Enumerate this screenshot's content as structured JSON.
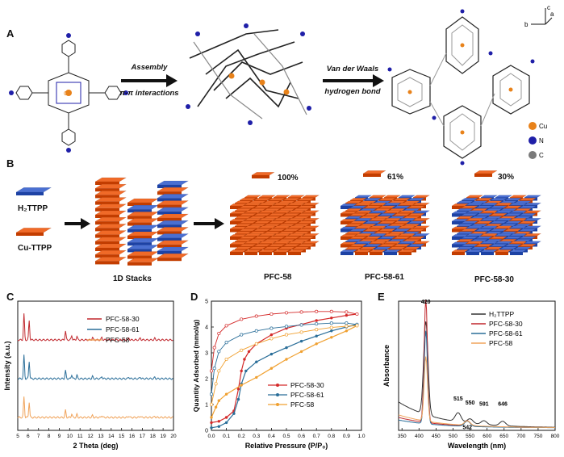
{
  "panels": {
    "a": {
      "letter": "A",
      "step1_line1": "Assembly",
      "step1_line2": "π-π interactions",
      "step2_line1": "Van der Waals",
      "step2_line2": "hydrogen bond",
      "axes": [
        "c",
        "b",
        "a"
      ],
      "legend": [
        {
          "element": "Cu",
          "color": "#e8821a"
        },
        {
          "element": "N",
          "color": "#1f1fa8"
        },
        {
          "element": "C",
          "color": "#7a7a7a"
        }
      ]
    },
    "b": {
      "letter": "B",
      "legend_h2": "H₂TTPP",
      "legend_cu": "Cu-TTPP",
      "stacks_label": "1D Stacks",
      "frameworks": [
        {
          "name": "PFC-58",
          "percent": "100%"
        },
        {
          "name": "PFC-58-61",
          "percent": "61%"
        },
        {
          "name": "PFC-58-30",
          "percent": "30%"
        }
      ],
      "colors": {
        "cu": "#f06a28",
        "h2": "#4a6fd1"
      }
    },
    "c": {
      "letter": "C"
    },
    "d": {
      "letter": "D"
    },
    "e": {
      "letter": "E"
    }
  },
  "chart_data": [
    {
      "type": "line",
      "panel": "C",
      "xlabel": "2 Theta (deg)",
      "ylabel": "Intensity (a.u.)",
      "xlim": [
        5,
        20
      ],
      "xticks": [
        5,
        6,
        7,
        8,
        9,
        10,
        11,
        12,
        13,
        14,
        15,
        16,
        17,
        18,
        19,
        20
      ],
      "peaks_2theta": [
        5.6,
        6.1,
        9.6,
        10.2,
        10.7,
        12.2,
        13.1,
        15.7,
        16.8,
        18.2
      ],
      "series": [
        {
          "name": "PFC-58-30",
          "color": "#c0272d",
          "baseline": 0.7
        },
        {
          "name": "PFC-58-61",
          "color": "#2a6e99",
          "baseline": 0.4
        },
        {
          "name": "PFC-58",
          "color": "#f0a35a",
          "baseline": 0.1
        }
      ]
    },
    {
      "type": "line",
      "panel": "D",
      "xlabel": "Relative Pressure (P/P₀)",
      "ylabel": "Quantity Adsorbed (mmol/g)",
      "xlim": [
        0,
        1.0
      ],
      "ylim": [
        0,
        5
      ],
      "xticks": [
        "0.0",
        "0.1",
        "0.2",
        "0.3",
        "0.4",
        "0.5",
        "0.6",
        "0.7",
        "0.8",
        "0.9",
        "1.0"
      ],
      "yticks": [
        0,
        1,
        2,
        3,
        4,
        5
      ],
      "series": [
        {
          "name": "PFC-58-30",
          "color": "#d42a2a",
          "adsorption": [
            [
              0.0,
              0.3
            ],
            [
              0.05,
              0.35
            ],
            [
              0.1,
              0.5
            ],
            [
              0.15,
              0.75
            ],
            [
              0.18,
              1.6
            ],
            [
              0.2,
              2.3
            ],
            [
              0.22,
              2.75
            ],
            [
              0.25,
              3.05
            ],
            [
              0.3,
              3.35
            ],
            [
              0.4,
              3.7
            ],
            [
              0.5,
              3.95
            ],
            [
              0.6,
              4.1
            ],
            [
              0.7,
              4.25
            ],
            [
              0.8,
              4.35
            ],
            [
              0.9,
              4.45
            ],
            [
              0.97,
              4.5
            ]
          ],
          "desorption": [
            [
              0.0,
              2.3
            ],
            [
              0.02,
              3.2
            ],
            [
              0.05,
              3.75
            ],
            [
              0.1,
              4.05
            ],
            [
              0.2,
              4.3
            ],
            [
              0.3,
              4.42
            ],
            [
              0.4,
              4.5
            ],
            [
              0.5,
              4.55
            ],
            [
              0.6,
              4.58
            ],
            [
              0.7,
              4.6
            ],
            [
              0.8,
              4.6
            ],
            [
              0.9,
              4.58
            ],
            [
              0.97,
              4.5
            ]
          ]
        },
        {
          "name": "PFC-58-61",
          "color": "#2a6e99",
          "adsorption": [
            [
              0.0,
              0.1
            ],
            [
              0.05,
              0.15
            ],
            [
              0.1,
              0.3
            ],
            [
              0.15,
              0.65
            ],
            [
              0.18,
              1.2
            ],
            [
              0.2,
              1.8
            ],
            [
              0.23,
              2.3
            ],
            [
              0.3,
              2.65
            ],
            [
              0.4,
              2.95
            ],
            [
              0.5,
              3.2
            ],
            [
              0.6,
              3.45
            ],
            [
              0.7,
              3.65
            ],
            [
              0.8,
              3.85
            ],
            [
              0.9,
              4.0
            ],
            [
              0.97,
              4.1
            ]
          ],
          "desorption": [
            [
              0.0,
              1.4
            ],
            [
              0.02,
              2.4
            ],
            [
              0.05,
              3.05
            ],
            [
              0.1,
              3.4
            ],
            [
              0.2,
              3.7
            ],
            [
              0.3,
              3.85
            ],
            [
              0.4,
              3.95
            ],
            [
              0.5,
              4.02
            ],
            [
              0.6,
              4.08
            ],
            [
              0.7,
              4.12
            ],
            [
              0.8,
              4.15
            ],
            [
              0.9,
              4.15
            ],
            [
              0.97,
              4.1
            ]
          ]
        },
        {
          "name": "PFC-58",
          "color": "#f0a030",
          "adsorption": [
            [
              0.0,
              0.5
            ],
            [
              0.03,
              0.9
            ],
            [
              0.05,
              1.15
            ],
            [
              0.1,
              1.4
            ],
            [
              0.2,
              1.75
            ],
            [
              0.3,
              2.05
            ],
            [
              0.4,
              2.4
            ],
            [
              0.5,
              2.75
            ],
            [
              0.6,
              3.05
            ],
            [
              0.7,
              3.35
            ],
            [
              0.8,
              3.6
            ],
            [
              0.9,
              3.85
            ],
            [
              0.97,
              4.05
            ]
          ],
          "desorption": [
            [
              0.0,
              1.0
            ],
            [
              0.03,
              1.8
            ],
            [
              0.05,
              2.3
            ],
            [
              0.1,
              2.75
            ],
            [
              0.2,
              3.1
            ],
            [
              0.3,
              3.35
            ],
            [
              0.4,
              3.55
            ],
            [
              0.5,
              3.7
            ],
            [
              0.6,
              3.8
            ],
            [
              0.7,
              3.9
            ],
            [
              0.8,
              3.98
            ],
            [
              0.9,
              4.03
            ],
            [
              0.97,
              4.05
            ]
          ]
        }
      ]
    },
    {
      "type": "line",
      "panel": "E",
      "xlabel": "Wavelength (nm)",
      "ylabel": "Absorbance",
      "xlim": [
        340,
        800
      ],
      "xticks": [
        350,
        400,
        450,
        500,
        550,
        600,
        650,
        700,
        750,
        800
      ],
      "peak_labels": [
        {
          "text": "420",
          "x": 420
        },
        {
          "text": "515",
          "x": 515
        },
        {
          "text": "550",
          "x": 550
        },
        {
          "text": "591",
          "x": 591
        },
        {
          "text": "646",
          "x": 646
        },
        {
          "text": "542",
          "x": 542
        }
      ],
      "series": [
        {
          "name": "H₂TTPP",
          "color": "#333333"
        },
        {
          "name": "PFC-58-30",
          "color": "#c0272d"
        },
        {
          "name": "PFC-58-61",
          "color": "#2a6e99"
        },
        {
          "name": "PFC-58",
          "color": "#f0a35a"
        }
      ]
    }
  ]
}
